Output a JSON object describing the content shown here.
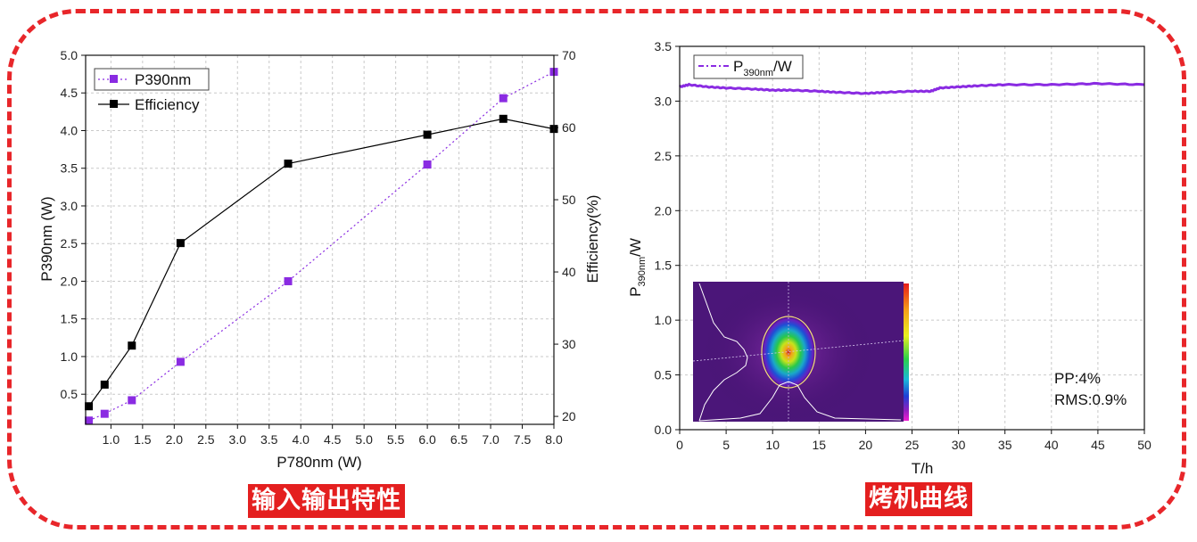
{
  "captions": {
    "left": "输入输出特性",
    "right": "烤机曲线"
  },
  "colors": {
    "frame": "#e8262a",
    "caption_bg": "#e41f1f",
    "p390": "#8a2be2",
    "efficiency": "#000000",
    "bake": "#8a2be2"
  },
  "chart_data": [
    {
      "type": "line",
      "xlabel": "P780nm (W)",
      "ylabel": "P390nm (W)",
      "y2label": "Efficiency(%)",
      "xlim": [
        0.6,
        8.0
      ],
      "ylim": [
        0.1,
        5.0
      ],
      "y2lim": [
        18.9,
        70
      ],
      "xticks": [
        "1.0",
        "1.5",
        "2.0",
        "2.5",
        "3.0",
        "3.5",
        "4.0",
        "4.5",
        "5.0",
        "5.5",
        "6.0",
        "6.5",
        "7.0",
        "7.5",
        "8.0"
      ],
      "yticks": [
        "0.5",
        "1.0",
        "1.5",
        "2.0",
        "2.5",
        "3.0",
        "3.5",
        "4.0",
        "4.5",
        "5.0"
      ],
      "y2ticks": [
        "20",
        "30",
        "40",
        "50",
        "60",
        "70"
      ],
      "grid": true,
      "legend_position": "top-left",
      "series": [
        {
          "name": "P390nm",
          "axis": "left",
          "style": "dotted",
          "marker": "square",
          "x": [
            0.65,
            0.9,
            1.33,
            2.1,
            3.8,
            6.0,
            7.2,
            8.0
          ],
          "values": [
            0.15,
            0.24,
            0.42,
            0.93,
            2.0,
            3.55,
            4.43,
            4.78
          ]
        },
        {
          "name": "Efficiency",
          "axis": "right",
          "style": "solid",
          "marker": "square",
          "x": [
            0.65,
            0.9,
            1.33,
            2.1,
            3.8,
            6.0,
            7.2,
            8.0
          ],
          "values": [
            21.4,
            24.4,
            29.8,
            44.0,
            55.0,
            59.0,
            61.2,
            59.8
          ]
        }
      ]
    },
    {
      "type": "line",
      "xlabel": "T/h",
      "ylabel": "P390nm/W",
      "xlim": [
        0,
        50
      ],
      "ylim": [
        0,
        3.5
      ],
      "xticks": [
        "0",
        "5",
        "10",
        "15",
        "20",
        "25",
        "30",
        "35",
        "40",
        "45",
        "50"
      ],
      "yticks": [
        "0.0",
        "0.5",
        "1.0",
        "1.5",
        "2.0",
        "2.5",
        "3.0",
        "3.5"
      ],
      "grid": true,
      "legend_position": "top-left",
      "series": [
        {
          "name": "P390nm/W",
          "x": [
            0,
            1,
            3,
            5,
            8,
            10,
            12,
            15,
            17,
            20,
            22,
            25,
            27,
            28,
            30,
            32,
            35,
            40,
            45,
            50
          ],
          "values": [
            3.13,
            3.15,
            3.13,
            3.12,
            3.11,
            3.1,
            3.1,
            3.09,
            3.08,
            3.07,
            3.08,
            3.09,
            3.09,
            3.12,
            3.13,
            3.14,
            3.15,
            3.15,
            3.16,
            3.15
          ]
        }
      ],
      "annotations": [
        "PP:4%",
        "RMS:0.9%"
      ]
    }
  ]
}
